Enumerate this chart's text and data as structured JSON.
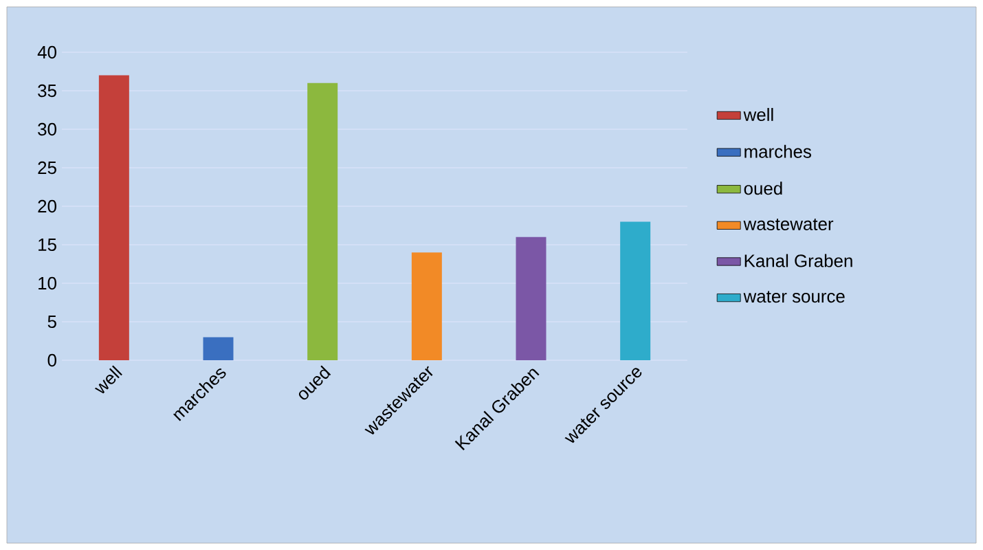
{
  "chart_data": {
    "type": "bar",
    "categories": [
      "well",
      "marches",
      "oued",
      "wastewater",
      "Kanal Graben",
      "water source"
    ],
    "series": [
      {
        "name": "well",
        "color": "#c4403a",
        "values": [
          37,
          null,
          null,
          null,
          null,
          null
        ]
      },
      {
        "name": "marches",
        "color": "#3a6fc0",
        "values": [
          null,
          3,
          null,
          null,
          null,
          null
        ]
      },
      {
        "name": "oued",
        "color": "#8cb83e",
        "values": [
          null,
          null,
          36,
          null,
          null,
          null
        ]
      },
      {
        "name": "wastewater",
        "color": "#f28a26",
        "values": [
          null,
          null,
          null,
          14,
          null,
          null
        ]
      },
      {
        "name": "Kanal Graben",
        "color": "#7b57a6",
        "values": [
          null,
          null,
          null,
          null,
          16,
          null
        ]
      },
      {
        "name": "water source",
        "color": "#2eaccb",
        "values": [
          null,
          null,
          null,
          null,
          null,
          18
        ]
      }
    ],
    "ylim": [
      0,
      40
    ],
    "yticks": [
      0,
      5,
      10,
      15,
      20,
      25,
      30,
      35,
      40
    ],
    "grid": "y",
    "legend": "right"
  }
}
